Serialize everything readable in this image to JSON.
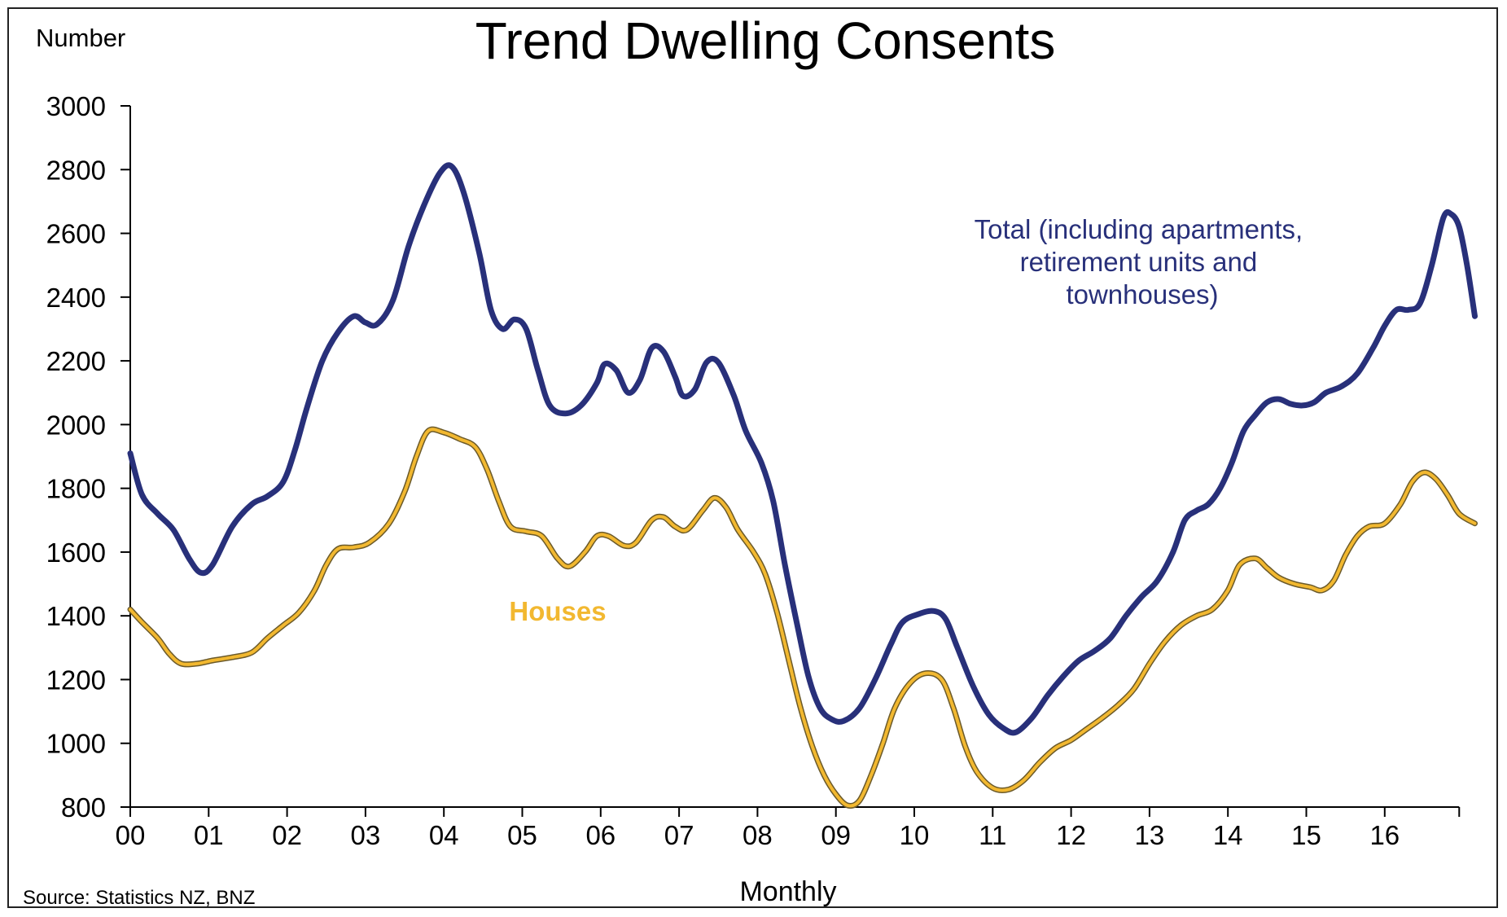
{
  "colors": {
    "total": "#28307a",
    "houses": "#f2b830",
    "axis": "#000000"
  },
  "source": "Source:  Statistics NZ, BNZ",
  "chart_data": {
    "type": "line",
    "title": "Trend Dwelling Consents",
    "ylabel": "Number",
    "xlabel": "Monthly",
    "ylim": [
      800,
      3000
    ],
    "xlim": [
      2000,
      2016.95
    ],
    "yticks": [
      "800",
      "1000",
      "1200",
      "1400",
      "1600",
      "1800",
      "2000",
      "2200",
      "2400",
      "2600",
      "2800",
      "3000"
    ],
    "xticks": [
      "00",
      "01",
      "02",
      "03",
      "04",
      "05",
      "06",
      "07",
      "08",
      "09",
      "10",
      "11",
      "12",
      "13",
      "14",
      "15",
      "16"
    ],
    "grid": false,
    "legend": "none",
    "series": [
      {
        "name": "Total (including apartments, retirement units and townhouses)",
        "label_lines": [
          "Total (including apartments,",
          "retirement units and",
          "townhouses)"
        ],
        "color": "#28307a",
        "points": [
          [
            2000.0,
            1910
          ],
          [
            2000.15,
            1780
          ],
          [
            2000.35,
            1720
          ],
          [
            2000.55,
            1670
          ],
          [
            2000.75,
            1580
          ],
          [
            2000.9,
            1535
          ],
          [
            2001.05,
            1560
          ],
          [
            2001.3,
            1680
          ],
          [
            2001.55,
            1750
          ],
          [
            2001.75,
            1775
          ],
          [
            2001.95,
            1820
          ],
          [
            2002.1,
            1920
          ],
          [
            2002.25,
            2050
          ],
          [
            2002.45,
            2200
          ],
          [
            2002.65,
            2290
          ],
          [
            2002.85,
            2340
          ],
          [
            2003.0,
            2320
          ],
          [
            2003.15,
            2315
          ],
          [
            2003.35,
            2390
          ],
          [
            2003.55,
            2560
          ],
          [
            2003.75,
            2690
          ],
          [
            2003.95,
            2790
          ],
          [
            2004.1,
            2810
          ],
          [
            2004.25,
            2730
          ],
          [
            2004.45,
            2540
          ],
          [
            2004.6,
            2360
          ],
          [
            2004.75,
            2300
          ],
          [
            2004.9,
            2330
          ],
          [
            2005.05,
            2300
          ],
          [
            2005.2,
            2170
          ],
          [
            2005.35,
            2060
          ],
          [
            2005.55,
            2035
          ],
          [
            2005.75,
            2060
          ],
          [
            2005.95,
            2130
          ],
          [
            2006.05,
            2190
          ],
          [
            2006.2,
            2170
          ],
          [
            2006.35,
            2100
          ],
          [
            2006.5,
            2140
          ],
          [
            2006.65,
            2240
          ],
          [
            2006.8,
            2230
          ],
          [
            2006.95,
            2150
          ],
          [
            2007.05,
            2090
          ],
          [
            2007.2,
            2110
          ],
          [
            2007.35,
            2195
          ],
          [
            2007.5,
            2195
          ],
          [
            2007.7,
            2090
          ],
          [
            2007.85,
            1980
          ],
          [
            2008.05,
            1880
          ],
          [
            2008.2,
            1760
          ],
          [
            2008.35,
            1560
          ],
          [
            2008.5,
            1380
          ],
          [
            2008.65,
            1210
          ],
          [
            2008.8,
            1110
          ],
          [
            2008.95,
            1075
          ],
          [
            2009.1,
            1070
          ],
          [
            2009.3,
            1110
          ],
          [
            2009.5,
            1200
          ],
          [
            2009.7,
            1310
          ],
          [
            2009.85,
            1380
          ],
          [
            2010.05,
            1405
          ],
          [
            2010.25,
            1415
          ],
          [
            2010.4,
            1390
          ],
          [
            2010.55,
            1300
          ],
          [
            2010.75,
            1180
          ],
          [
            2010.95,
            1090
          ],
          [
            2011.15,
            1045
          ],
          [
            2011.3,
            1035
          ],
          [
            2011.5,
            1080
          ],
          [
            2011.7,
            1150
          ],
          [
            2011.9,
            1210
          ],
          [
            2012.1,
            1260
          ],
          [
            2012.3,
            1290
          ],
          [
            2012.5,
            1330
          ],
          [
            2012.7,
            1400
          ],
          [
            2012.9,
            1460
          ],
          [
            2013.1,
            1510
          ],
          [
            2013.3,
            1600
          ],
          [
            2013.45,
            1700
          ],
          [
            2013.6,
            1730
          ],
          [
            2013.75,
            1750
          ],
          [
            2013.9,
            1800
          ],
          [
            2014.05,
            1880
          ],
          [
            2014.2,
            1980
          ],
          [
            2014.35,
            2030
          ],
          [
            2014.5,
            2070
          ],
          [
            2014.65,
            2080
          ],
          [
            2014.8,
            2065
          ],
          [
            2014.95,
            2060
          ],
          [
            2015.1,
            2070
          ],
          [
            2015.25,
            2100
          ],
          [
            2015.45,
            2120
          ],
          [
            2015.65,
            2160
          ],
          [
            2015.85,
            2240
          ],
          [
            2016.0,
            2310
          ],
          [
            2016.15,
            2360
          ],
          [
            2016.3,
            2360
          ],
          [
            2016.45,
            2380
          ],
          [
            2016.6,
            2500
          ],
          [
            2016.75,
            2650
          ],
          [
            2016.85,
            2660
          ],
          [
            2016.95,
            2620
          ],
          [
            2017.05,
            2500
          ],
          [
            2017.15,
            2340
          ]
        ]
      },
      {
        "name": "Houses",
        "label_lines": [
          "Houses"
        ],
        "color": "#f2b830",
        "points": [
          [
            2000.0,
            1420
          ],
          [
            2000.15,
            1380
          ],
          [
            2000.35,
            1330
          ],
          [
            2000.5,
            1280
          ],
          [
            2000.65,
            1250
          ],
          [
            2000.85,
            1250
          ],
          [
            2001.05,
            1260
          ],
          [
            2001.3,
            1270
          ],
          [
            2001.55,
            1285
          ],
          [
            2001.75,
            1330
          ],
          [
            2001.95,
            1370
          ],
          [
            2002.15,
            1410
          ],
          [
            2002.35,
            1480
          ],
          [
            2002.5,
            1560
          ],
          [
            2002.65,
            1610
          ],
          [
            2002.85,
            1615
          ],
          [
            2003.05,
            1630
          ],
          [
            2003.3,
            1690
          ],
          [
            2003.5,
            1790
          ],
          [
            2003.65,
            1900
          ],
          [
            2003.8,
            1980
          ],
          [
            2004.0,
            1975
          ],
          [
            2004.2,
            1955
          ],
          [
            2004.4,
            1930
          ],
          [
            2004.55,
            1860
          ],
          [
            2004.7,
            1760
          ],
          [
            2004.85,
            1680
          ],
          [
            2005.05,
            1665
          ],
          [
            2005.25,
            1650
          ],
          [
            2005.45,
            1580
          ],
          [
            2005.6,
            1555
          ],
          [
            2005.8,
            1600
          ],
          [
            2005.95,
            1650
          ],
          [
            2006.1,
            1650
          ],
          [
            2006.3,
            1620
          ],
          [
            2006.45,
            1630
          ],
          [
            2006.65,
            1700
          ],
          [
            2006.8,
            1710
          ],
          [
            2006.95,
            1680
          ],
          [
            2007.1,
            1670
          ],
          [
            2007.3,
            1730
          ],
          [
            2007.45,
            1770
          ],
          [
            2007.6,
            1740
          ],
          [
            2007.75,
            1670
          ],
          [
            2007.95,
            1600
          ],
          [
            2008.1,
            1530
          ],
          [
            2008.25,
            1410
          ],
          [
            2008.4,
            1260
          ],
          [
            2008.55,
            1110
          ],
          [
            2008.7,
            990
          ],
          [
            2008.85,
            900
          ],
          [
            2009.0,
            840
          ],
          [
            2009.15,
            805
          ],
          [
            2009.3,
            820
          ],
          [
            2009.45,
            900
          ],
          [
            2009.6,
            1000
          ],
          [
            2009.75,
            1110
          ],
          [
            2009.95,
            1190
          ],
          [
            2010.15,
            1220
          ],
          [
            2010.35,
            1200
          ],
          [
            2010.5,
            1110
          ],
          [
            2010.65,
            990
          ],
          [
            2010.8,
            910
          ],
          [
            2011.0,
            860
          ],
          [
            2011.2,
            855
          ],
          [
            2011.4,
            885
          ],
          [
            2011.6,
            940
          ],
          [
            2011.8,
            985
          ],
          [
            2012.0,
            1010
          ],
          [
            2012.2,
            1045
          ],
          [
            2012.4,
            1080
          ],
          [
            2012.6,
            1120
          ],
          [
            2012.8,
            1170
          ],
          [
            2013.0,
            1250
          ],
          [
            2013.2,
            1320
          ],
          [
            2013.4,
            1370
          ],
          [
            2013.6,
            1400
          ],
          [
            2013.8,
            1420
          ],
          [
            2014.0,
            1480
          ],
          [
            2014.15,
            1560
          ],
          [
            2014.35,
            1580
          ],
          [
            2014.5,
            1550
          ],
          [
            2014.65,
            1520
          ],
          [
            2014.85,
            1500
          ],
          [
            2015.05,
            1490
          ],
          [
            2015.2,
            1480
          ],
          [
            2015.35,
            1510
          ],
          [
            2015.5,
            1590
          ],
          [
            2015.65,
            1650
          ],
          [
            2015.8,
            1680
          ],
          [
            2016.0,
            1690
          ],
          [
            2016.2,
            1750
          ],
          [
            2016.35,
            1820
          ],
          [
            2016.5,
            1850
          ],
          [
            2016.65,
            1830
          ],
          [
            2016.8,
            1780
          ],
          [
            2016.95,
            1720
          ],
          [
            2017.15,
            1690
          ]
        ]
      }
    ]
  }
}
